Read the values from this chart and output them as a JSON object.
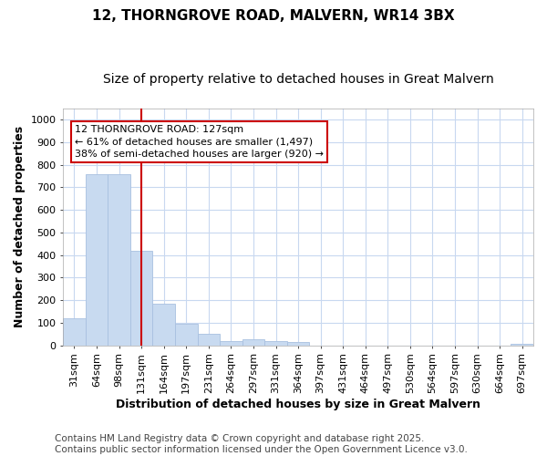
{
  "title": "12, THORNGROVE ROAD, MALVERN, WR14 3BX",
  "subtitle": "Size of property relative to detached houses in Great Malvern",
  "xlabel": "Distribution of detached houses by size in Great Malvern",
  "ylabel": "Number of detached properties",
  "categories": [
    "31sqm",
    "64sqm",
    "98sqm",
    "131sqm",
    "164sqm",
    "197sqm",
    "231sqm",
    "264sqm",
    "297sqm",
    "331sqm",
    "364sqm",
    "397sqm",
    "431sqm",
    "464sqm",
    "497sqm",
    "530sqm",
    "564sqm",
    "597sqm",
    "630sqm",
    "664sqm",
    "697sqm"
  ],
  "values": [
    120,
    760,
    760,
    420,
    185,
    95,
    50,
    20,
    25,
    20,
    15,
    0,
    0,
    0,
    0,
    0,
    0,
    0,
    0,
    0,
    5
  ],
  "bar_color": "#c8daf0",
  "bar_edge_color": "#a8c0e0",
  "vline_x_index": 3,
  "vline_color": "#cc0000",
  "ylim": [
    0,
    1050
  ],
  "yticks": [
    0,
    100,
    200,
    300,
    400,
    500,
    600,
    700,
    800,
    900,
    1000
  ],
  "annotation_line1": "12 THORNGROVE ROAD: 127sqm",
  "annotation_line2": "← 61% of detached houses are smaller (1,497)",
  "annotation_line3": "38% of semi-detached houses are larger (920) →",
  "annotation_box_color": "#ffffff",
  "annotation_box_edge_color": "#cc0000",
  "footnote": "Contains HM Land Registry data © Crown copyright and database right 2025.\nContains public sector information licensed under the Open Government Licence v3.0.",
  "background_color": "#ffffff",
  "plot_bg_color": "#ffffff",
  "grid_color": "#c8d8f0",
  "title_fontsize": 11,
  "subtitle_fontsize": 10,
  "tick_fontsize": 8,
  "label_fontsize": 9,
  "footnote_fontsize": 7.5,
  "annotation_fontsize": 8
}
